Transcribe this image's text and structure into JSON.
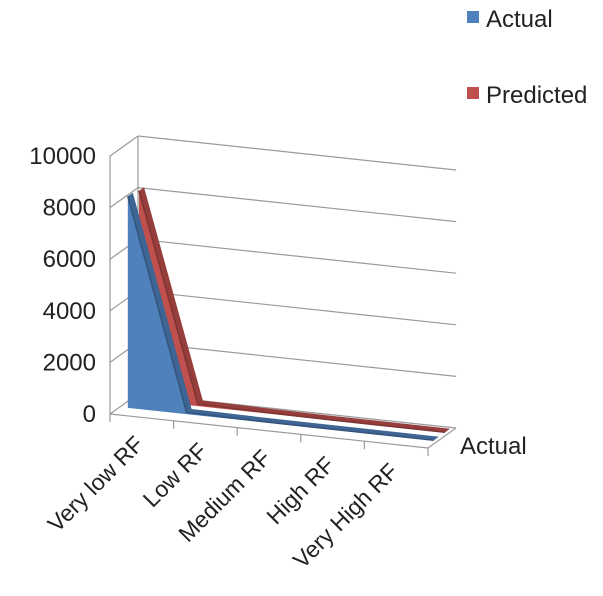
{
  "chart_data": {
    "type": "area",
    "categories": [
      "Very low RF",
      "Low RF",
      "Medium RF",
      "High RF",
      "Very High RF"
    ],
    "series": [
      {
        "name": "Actual",
        "values": [
          8200,
          60,
          30,
          20,
          10
        ]
      },
      {
        "name": "Predicted",
        "values": [
          8100,
          80,
          40,
          20,
          10
        ]
      }
    ],
    "depth_axis_label": "Actual",
    "ylim": [
      0,
      10000
    ],
    "yticks": [
      0,
      2000,
      4000,
      6000,
      8000,
      10000
    ],
    "ytick_labels": [
      "0",
      "2000",
      "4000",
      "6000",
      "8000",
      "10000"
    ],
    "grid": true,
    "legend_position": "top-right",
    "colors": {
      "Actual": "#4F81BD",
      "Predicted": "#C0504D"
    }
  }
}
